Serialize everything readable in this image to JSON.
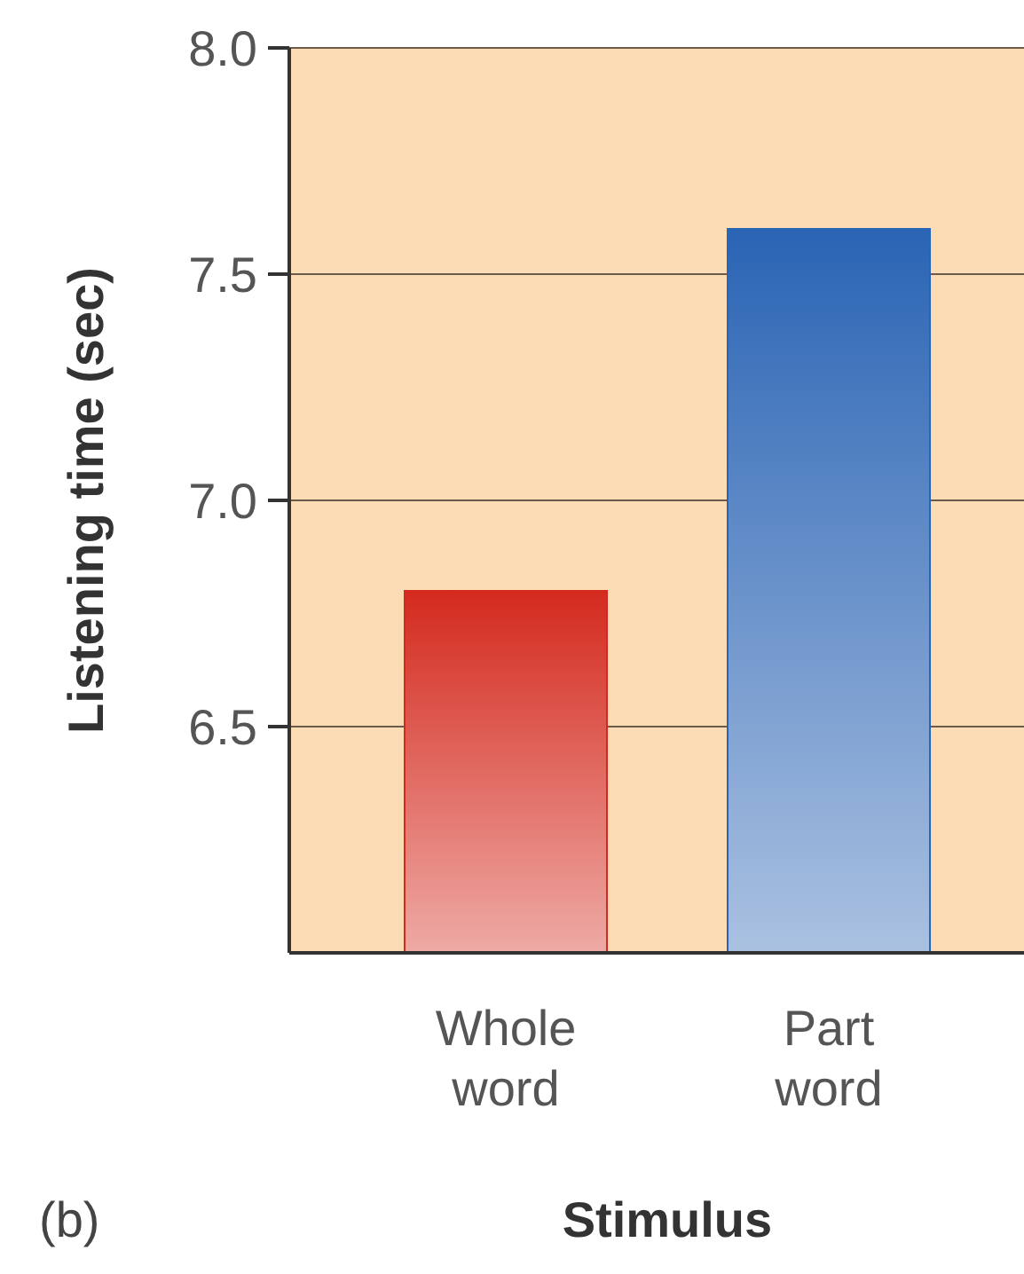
{
  "chart_data": {
    "type": "bar",
    "categories": [
      "Whole word",
      "Part word"
    ],
    "values": [
      6.8,
      7.6
    ],
    "colors": [
      "#d42a1e",
      "#2a64b4"
    ],
    "ylim": [
      6,
      8
    ],
    "yticks": [
      6.5,
      {
        "value": 7,
        "label": "7.0"
      },
      7.5,
      {
        "value": 8,
        "label": "8.0"
      }
    ],
    "grid": "y",
    "xlabel": "Stimulus",
    "ylabel": "Listening time (sec)",
    "annotations": [
      "(b)"
    ]
  }
}
